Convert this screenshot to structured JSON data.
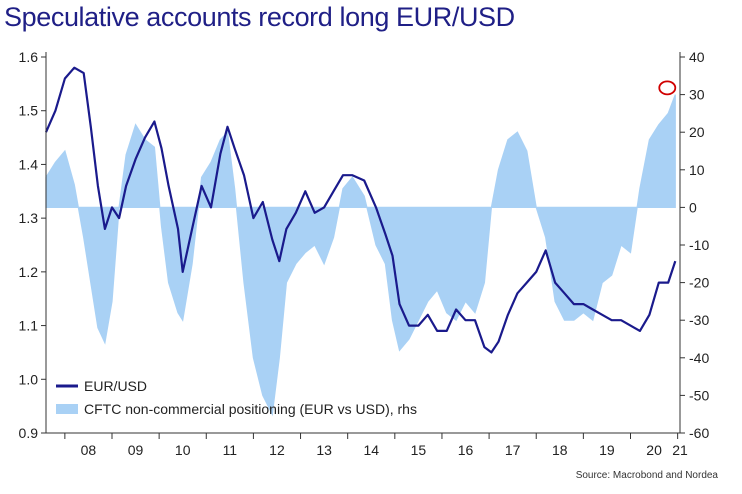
{
  "title": "Speculative accounts record long EUR/USD",
  "source": "Source: Macrobond and Nordea",
  "colors": {
    "title": "#1f1f86",
    "eurusd": "#1a1a8c",
    "cftc": "#a9d1f5",
    "marker": "#d00000"
  },
  "chart_data": {
    "type": "line",
    "x_ticks": [
      "08",
      "09",
      "10",
      "11",
      "12",
      "13",
      "14",
      "15",
      "16",
      "17",
      "18",
      "19",
      "20",
      "21"
    ],
    "y_left": {
      "range": [
        0.9,
        1.6
      ],
      "ticks": [
        "0.9",
        "1.0",
        "1.1",
        "1.2",
        "1.3",
        "1.4",
        "1.5",
        "1.6"
      ]
    },
    "y_right": {
      "range": [
        -60,
        40
      ],
      "ticks": [
        "-60",
        "-50",
        "-40",
        "-30",
        "-20",
        "-10",
        "0",
        "10",
        "20",
        "30",
        "40"
      ]
    },
    "legend": {
      "placement": "bottom-left"
    },
    "series": [
      {
        "name": "EUR/USD",
        "axis": "left",
        "kind": "line",
        "x": [
          2007.6,
          2007.8,
          2008.0,
          2008.2,
          2008.4,
          2008.55,
          2008.7,
          2008.85,
          2009.0,
          2009.15,
          2009.3,
          2009.5,
          2009.7,
          2009.9,
          2010.05,
          2010.2,
          2010.4,
          2010.5,
          2010.7,
          2010.9,
          2011.1,
          2011.3,
          2011.45,
          2011.6,
          2011.8,
          2012.0,
          2012.2,
          2012.4,
          2012.55,
          2012.7,
          2012.9,
          2013.1,
          2013.3,
          2013.5,
          2013.7,
          2013.9,
          2014.1,
          2014.35,
          2014.6,
          2014.8,
          2014.95,
          2015.1,
          2015.3,
          2015.5,
          2015.7,
          2015.9,
          2016.1,
          2016.3,
          2016.5,
          2016.7,
          2016.9,
          2017.05,
          2017.2,
          2017.4,
          2017.6,
          2017.8,
          2018.0,
          2018.2,
          2018.4,
          2018.6,
          2018.8,
          2019.0,
          2019.2,
          2019.4,
          2019.6,
          2019.8,
          2020.0,
          2020.2,
          2020.4,
          2020.6,
          2020.8,
          2020.95
        ],
        "values": [
          1.46,
          1.5,
          1.56,
          1.58,
          1.57,
          1.47,
          1.36,
          1.28,
          1.32,
          1.3,
          1.36,
          1.41,
          1.45,
          1.48,
          1.43,
          1.36,
          1.28,
          1.2,
          1.28,
          1.36,
          1.32,
          1.42,
          1.47,
          1.43,
          1.38,
          1.3,
          1.33,
          1.26,
          1.22,
          1.28,
          1.31,
          1.35,
          1.31,
          1.32,
          1.35,
          1.38,
          1.38,
          1.37,
          1.32,
          1.27,
          1.23,
          1.14,
          1.1,
          1.1,
          1.12,
          1.09,
          1.09,
          1.13,
          1.11,
          1.11,
          1.06,
          1.05,
          1.07,
          1.12,
          1.16,
          1.18,
          1.2,
          1.24,
          1.18,
          1.16,
          1.14,
          1.14,
          1.13,
          1.12,
          1.11,
          1.11,
          1.1,
          1.09,
          1.12,
          1.18,
          1.18,
          1.22
        ]
      },
      {
        "name": "CFTC non-commercial positioning (EUR vs USD), rhs",
        "axis": "right",
        "kind": "area",
        "x": [
          2007.6,
          2007.8,
          2008.0,
          2008.2,
          2008.4,
          2008.55,
          2008.7,
          2008.85,
          2009.0,
          2009.15,
          2009.3,
          2009.5,
          2009.7,
          2009.9,
          2010.05,
          2010.2,
          2010.4,
          2010.5,
          2010.7,
          2010.9,
          2011.1,
          2011.3,
          2011.45,
          2011.6,
          2011.8,
          2012.0,
          2012.2,
          2012.4,
          2012.55,
          2012.7,
          2012.9,
          2013.1,
          2013.3,
          2013.5,
          2013.7,
          2013.9,
          2014.1,
          2014.35,
          2014.6,
          2014.8,
          2014.95,
          2015.1,
          2015.3,
          2015.5,
          2015.7,
          2015.9,
          2016.1,
          2016.3,
          2016.5,
          2016.7,
          2016.9,
          2017.05,
          2017.2,
          2017.4,
          2017.6,
          2017.8,
          2018.0,
          2018.2,
          2018.4,
          2018.6,
          2018.8,
          2019.0,
          2019.2,
          2019.4,
          2019.6,
          2019.8,
          2020.0,
          2020.2,
          2020.4,
          2020.6,
          2020.8,
          2020.95
        ],
        "values": [
          8,
          12,
          15,
          6,
          -8,
          -20,
          -32,
          -36,
          -25,
          0,
          14,
          22,
          18,
          16,
          -5,
          -20,
          -28,
          -30,
          -15,
          8,
          12,
          18,
          20,
          5,
          -20,
          -40,
          -50,
          -55,
          -40,
          -20,
          -15,
          -12,
          -10,
          -15,
          -8,
          5,
          8,
          3,
          -10,
          -15,
          -30,
          -38,
          -35,
          -30,
          -25,
          -22,
          -28,
          -30,
          -25,
          -28,
          -20,
          0,
          10,
          18,
          20,
          15,
          0,
          -8,
          -25,
          -30,
          -30,
          -28,
          -30,
          -20,
          -18,
          -10,
          -12,
          5,
          18,
          22,
          25,
          30
        ]
      }
    ],
    "annotations": [
      {
        "type": "circle-marker",
        "series": "CFTC non-commercial positioning (EUR vs USD), rhs",
        "x": 2020.95,
        "y": 31
      }
    ]
  }
}
